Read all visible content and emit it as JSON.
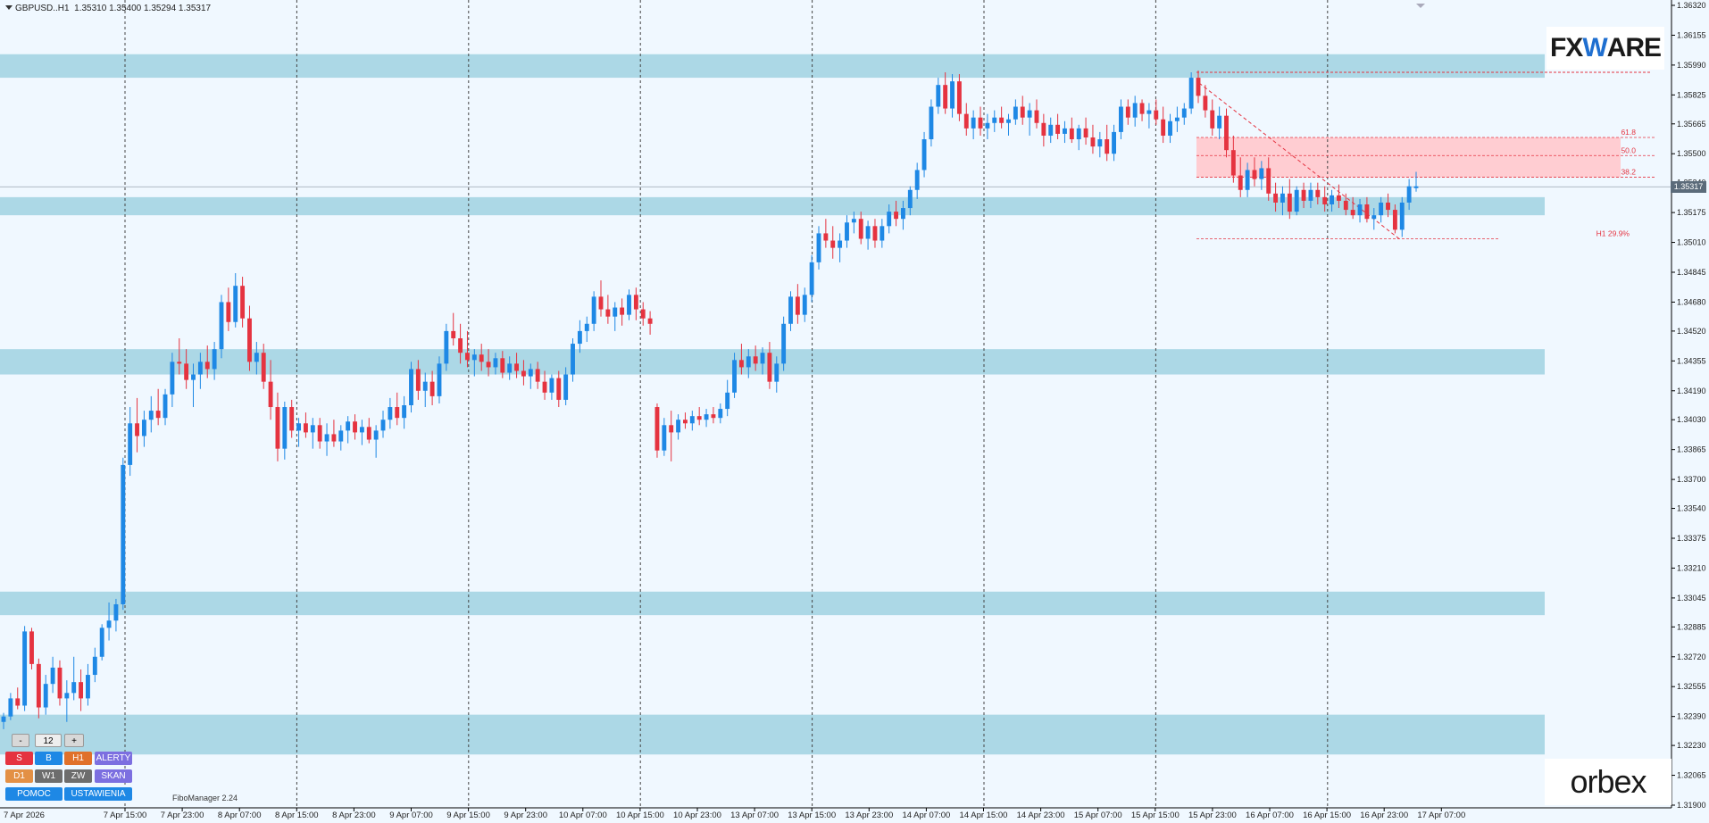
{
  "header": {
    "symbol": "GBPUSD..H1",
    "ohlc": "1.35310 1.35400 1.35294 1.35317"
  },
  "current_price": "1.35317",
  "logos": {
    "fxware_prefix": "FX",
    "fxware_mark": "W",
    "fxware_suffix": "ARE",
    "orbex": "orbex"
  },
  "indicator_label": "FiboManager 2.24",
  "panel": {
    "minus": "-",
    "value": "12",
    "plus": "+",
    "s": "S",
    "b": "B",
    "h1": "H1",
    "alerty": "ALERTY",
    "d1": "D1",
    "w1": "W1",
    "zw": "ZW",
    "skan": "SKAN",
    "pomoc": "POMOC",
    "ustawienia": "USTAWIENIA"
  },
  "colors": {
    "bull": "#1e88e5",
    "bear": "#e53340",
    "zone": "#acd8e6",
    "fibzone": "#ffcdd2",
    "grid": "#444444",
    "fib": "#e53340"
  },
  "chart_data": {
    "type": "candlestick",
    "y_range": [
      1.319,
      1.3632
    ],
    "price_axis": [
      "1.36320",
      "1.36155",
      "1.35990",
      "1.35825",
      "1.35665",
      "1.35500",
      "1.35340",
      "1.35175",
      "1.35010",
      "1.34845",
      "1.34680",
      "1.34520",
      "1.34355",
      "1.34190",
      "1.34030",
      "1.33865",
      "1.33700",
      "1.33540",
      "1.33375",
      "1.33210",
      "1.33045",
      "1.32885",
      "1.32720",
      "1.32555",
      "1.32390",
      "1.32230",
      "1.32065",
      "1.31900"
    ],
    "time_axis": [
      "7 Apr 2026",
      "7 Apr 15:00",
      "7 Apr 23:00",
      "8 Apr 07:00",
      "8 Apr 15:00",
      "8 Apr 23:00",
      "9 Apr 07:00",
      "9 Apr 15:00",
      "9 Apr 23:00",
      "10 Apr 07:00",
      "10 Apr 15:00",
      "10 Apr 23:00",
      "13 Apr 07:00",
      "13 Apr 15:00",
      "13 Apr 23:00",
      "14 Apr 07:00",
      "14 Apr 15:00",
      "14 Apr 23:00",
      "15 Apr 07:00",
      "15 Apr 15:00",
      "15 Apr 23:00",
      "16 Apr 07:00",
      "16 Apr 15:00",
      "16 Apr 23:00",
      "17 Apr 07:00"
    ],
    "zones": [
      [
        1.3592,
        1.3605
      ],
      [
        1.3516,
        1.3526
      ],
      [
        1.3428,
        1.3442
      ],
      [
        1.3295,
        1.3308
      ],
      [
        1.3218,
        1.324
      ]
    ],
    "fib_levels": [
      {
        "label": "61.8",
        "price": 1.3559
      },
      {
        "label": "50.0",
        "price": 1.3549
      },
      {
        "label": "38.2",
        "price": 1.3537
      },
      {
        "label": "H1 29.9%",
        "price": 1.3503
      }
    ],
    "fib_zone": [
      1.3537,
      1.3559
    ],
    "fib_top": 1.3595,
    "candles": [
      [
        1.3236,
        1.3241,
        1.3232,
        1.3239
      ],
      [
        1.3239,
        1.3252,
        1.3237,
        1.3249
      ],
      [
        1.3249,
        1.3255,
        1.3243,
        1.3245
      ],
      [
        1.3245,
        1.3289,
        1.3242,
        1.3286
      ],
      [
        1.3286,
        1.3288,
        1.3265,
        1.3268
      ],
      [
        1.3268,
        1.3271,
        1.3238,
        1.3244
      ],
      [
        1.3244,
        1.3262,
        1.324,
        1.3257
      ],
      [
        1.3257,
        1.3272,
        1.3252,
        1.3266
      ],
      [
        1.3266,
        1.327,
        1.3245,
        1.3249
      ],
      [
        1.3249,
        1.3259,
        1.3236,
        1.3252
      ],
      [
        1.3252,
        1.3272,
        1.3248,
        1.3258
      ],
      [
        1.3258,
        1.3265,
        1.3242,
        1.3249
      ],
      [
        1.3249,
        1.3268,
        1.3245,
        1.3262
      ],
      [
        1.3262,
        1.3277,
        1.3258,
        1.3272
      ],
      [
        1.3272,
        1.329,
        1.327,
        1.3288
      ],
      [
        1.3288,
        1.3302,
        1.3281,
        1.3292
      ],
      [
        1.3292,
        1.3304,
        1.3286,
        1.3301
      ],
      [
        1.3301,
        1.3382,
        1.3298,
        1.3378
      ],
      [
        1.3378,
        1.341,
        1.3372,
        1.3401
      ],
      [
        1.3401,
        1.3415,
        1.3385,
        1.3394
      ],
      [
        1.3394,
        1.3408,
        1.3388,
        1.3403
      ],
      [
        1.3403,
        1.3416,
        1.3396,
        1.3408
      ],
      [
        1.3408,
        1.342,
        1.34,
        1.3404
      ],
      [
        1.3404,
        1.342,
        1.34,
        1.3417
      ],
      [
        1.3417,
        1.344,
        1.341,
        1.3435
      ],
      [
        1.3435,
        1.3448,
        1.3428,
        1.3434
      ],
      [
        1.3434,
        1.3442,
        1.342,
        1.3425
      ],
      [
        1.3425,
        1.3434,
        1.341,
        1.3428
      ],
      [
        1.3428,
        1.344,
        1.342,
        1.3435
      ],
      [
        1.3435,
        1.3444,
        1.3426,
        1.3431
      ],
      [
        1.3431,
        1.3446,
        1.3425,
        1.3442
      ],
      [
        1.3442,
        1.3472,
        1.3437,
        1.3468
      ],
      [
        1.3468,
        1.3476,
        1.3452,
        1.3457
      ],
      [
        1.3457,
        1.3484,
        1.3454,
        1.3477
      ],
      [
        1.3477,
        1.3482,
        1.3454,
        1.3459
      ],
      [
        1.3459,
        1.3466,
        1.343,
        1.3435
      ],
      [
        1.3435,
        1.3446,
        1.3428,
        1.344
      ],
      [
        1.344,
        1.3445,
        1.342,
        1.3424
      ],
      [
        1.3424,
        1.3436,
        1.3403,
        1.341
      ],
      [
        1.341,
        1.3418,
        1.338,
        1.3387
      ],
      [
        1.3387,
        1.3413,
        1.3381,
        1.341
      ],
      [
        1.341,
        1.3414,
        1.3393,
        1.3397
      ],
      [
        1.3397,
        1.3404,
        1.3388,
        1.3401
      ],
      [
        1.3401,
        1.3407,
        1.3393,
        1.3396
      ],
      [
        1.3396,
        1.3404,
        1.3387,
        1.34
      ],
      [
        1.34,
        1.3404,
        1.3387,
        1.3391
      ],
      [
        1.3391,
        1.3401,
        1.3383,
        1.3395
      ],
      [
        1.3395,
        1.3403,
        1.3388,
        1.3391
      ],
      [
        1.3391,
        1.34,
        1.3386,
        1.3397
      ],
      [
        1.3397,
        1.3405,
        1.339,
        1.3402
      ],
      [
        1.3402,
        1.3406,
        1.3392,
        1.3396
      ],
      [
        1.3396,
        1.3403,
        1.3389,
        1.3399
      ],
      [
        1.3399,
        1.3404,
        1.339,
        1.3392
      ],
      [
        1.3392,
        1.34,
        1.3382,
        1.3397
      ],
      [
        1.3397,
        1.3408,
        1.3393,
        1.3403
      ],
      [
        1.3403,
        1.3415,
        1.3398,
        1.341
      ],
      [
        1.341,
        1.3418,
        1.34,
        1.3404
      ],
      [
        1.3404,
        1.3416,
        1.3398,
        1.3411
      ],
      [
        1.3411,
        1.3435,
        1.3407,
        1.3431
      ],
      [
        1.3431,
        1.3436,
        1.3414,
        1.3419
      ],
      [
        1.3419,
        1.3429,
        1.341,
        1.3424
      ],
      [
        1.3424,
        1.343,
        1.3411,
        1.3416
      ],
      [
        1.3416,
        1.3438,
        1.3412,
        1.3434
      ],
      [
        1.3434,
        1.3456,
        1.343,
        1.3452
      ],
      [
        1.3452,
        1.3462,
        1.3444,
        1.3448
      ],
      [
        1.3448,
        1.3456,
        1.3434,
        1.344
      ],
      [
        1.344,
        1.3452,
        1.3432,
        1.3436
      ],
      [
        1.3436,
        1.3442,
        1.3427,
        1.3439
      ],
      [
        1.3439,
        1.3445,
        1.343,
        1.3435
      ],
      [
        1.3435,
        1.3442,
        1.3427,
        1.3432
      ],
      [
        1.3432,
        1.344,
        1.3428,
        1.3437
      ],
      [
        1.3437,
        1.3441,
        1.3426,
        1.3429
      ],
      [
        1.3429,
        1.3438,
        1.3425,
        1.3434
      ],
      [
        1.3434,
        1.344,
        1.3426,
        1.343
      ],
      [
        1.343,
        1.3436,
        1.3422,
        1.3427
      ],
      [
        1.3427,
        1.3434,
        1.342,
        1.3431
      ],
      [
        1.3431,
        1.3435,
        1.342,
        1.3424
      ],
      [
        1.3424,
        1.343,
        1.3414,
        1.3418
      ],
      [
        1.3418,
        1.3428,
        1.3414,
        1.3426
      ],
      [
        1.3426,
        1.343,
        1.341,
        1.3414
      ],
      [
        1.3414,
        1.3432,
        1.3411,
        1.3428
      ],
      [
        1.3428,
        1.3448,
        1.3424,
        1.3445
      ],
      [
        1.3445,
        1.3458,
        1.344,
        1.3452
      ],
      [
        1.3452,
        1.346,
        1.3446,
        1.3456
      ],
      [
        1.3456,
        1.3474,
        1.3452,
        1.3471
      ],
      [
        1.3471,
        1.348,
        1.346,
        1.3464
      ],
      [
        1.3464,
        1.3472,
        1.3456,
        1.346
      ],
      [
        1.346,
        1.3468,
        1.3452,
        1.3465
      ],
      [
        1.3465,
        1.347,
        1.3455,
        1.3461
      ],
      [
        1.3461,
        1.3475,
        1.3458,
        1.3472
      ],
      [
        1.3472,
        1.3476,
        1.3458,
        1.3464
      ],
      [
        1.3464,
        1.3468,
        1.3455,
        1.3459
      ],
      [
        1.3459,
        1.3463,
        1.345,
        1.3456
      ],
      [
        1.341,
        1.3412,
        1.3382,
        1.3386
      ],
      [
        1.3386,
        1.3404,
        1.3383,
        1.34
      ],
      [
        1.34,
        1.3408,
        1.338,
        1.3396
      ],
      [
        1.3396,
        1.3406,
        1.3392,
        1.3403
      ],
      [
        1.3403,
        1.3407,
        1.3398,
        1.3401
      ],
      [
        1.3401,
        1.3408,
        1.3397,
        1.3405
      ],
      [
        1.3405,
        1.341,
        1.34,
        1.3403
      ],
      [
        1.3403,
        1.3409,
        1.3399,
        1.3406
      ],
      [
        1.3406,
        1.341,
        1.3401,
        1.3404
      ],
      [
        1.3404,
        1.3412,
        1.3401,
        1.3409
      ],
      [
        1.3409,
        1.3425,
        1.3405,
        1.3418
      ],
      [
        1.3418,
        1.344,
        1.3415,
        1.3436
      ],
      [
        1.3436,
        1.3445,
        1.3428,
        1.3432
      ],
      [
        1.3432,
        1.3442,
        1.3426,
        1.3438
      ],
      [
        1.3438,
        1.3444,
        1.343,
        1.3434
      ],
      [
        1.3434,
        1.3443,
        1.3428,
        1.344
      ],
      [
        1.344,
        1.3446,
        1.342,
        1.3424
      ],
      [
        1.3424,
        1.3438,
        1.3418,
        1.3434
      ],
      [
        1.3434,
        1.346,
        1.343,
        1.3456
      ],
      [
        1.3456,
        1.3474,
        1.3452,
        1.3471
      ],
      [
        1.3471,
        1.3478,
        1.3456,
        1.3461
      ],
      [
        1.3461,
        1.3476,
        1.3457,
        1.3472
      ],
      [
        1.3472,
        1.3494,
        1.3468,
        1.349
      ],
      [
        1.349,
        1.351,
        1.3486,
        1.3506
      ],
      [
        1.3506,
        1.3514,
        1.3498,
        1.3502
      ],
      [
        1.3502,
        1.351,
        1.3492,
        1.3498
      ],
      [
        1.3498,
        1.3506,
        1.349,
        1.3502
      ],
      [
        1.3502,
        1.3516,
        1.3498,
        1.3512
      ],
      [
        1.3512,
        1.3518,
        1.3506,
        1.3514
      ],
      [
        1.3514,
        1.3518,
        1.35,
        1.3503
      ],
      [
        1.3503,
        1.3513,
        1.3497,
        1.351
      ],
      [
        1.351,
        1.3514,
        1.3498,
        1.3502
      ],
      [
        1.3502,
        1.3514,
        1.3498,
        1.351
      ],
      [
        1.351,
        1.3522,
        1.3506,
        1.3518
      ],
      [
        1.3518,
        1.3524,
        1.351,
        1.3514
      ],
      [
        1.3514,
        1.3524,
        1.3508,
        1.352
      ],
      [
        1.352,
        1.3532,
        1.3516,
        1.353
      ],
      [
        1.353,
        1.3545,
        1.3525,
        1.3541
      ],
      [
        1.3541,
        1.3562,
        1.3537,
        1.3558
      ],
      [
        1.3558,
        1.358,
        1.3554,
        1.3576
      ],
      [
        1.3576,
        1.3592,
        1.3572,
        1.3588
      ],
      [
        1.3588,
        1.3595,
        1.3572,
        1.3575
      ],
      [
        1.3575,
        1.3594,
        1.357,
        1.359
      ],
      [
        1.359,
        1.3594,
        1.3568,
        1.3572
      ],
      [
        1.3572,
        1.3578,
        1.356,
        1.3564
      ],
      [
        1.3564,
        1.3574,
        1.3558,
        1.357
      ],
      [
        1.357,
        1.3576,
        1.356,
        1.3564
      ],
      [
        1.3564,
        1.3572,
        1.3558,
        1.3567
      ],
      [
        1.3567,
        1.3574,
        1.3562,
        1.357
      ],
      [
        1.357,
        1.3576,
        1.3564,
        1.3567
      ],
      [
        1.3567,
        1.3572,
        1.356,
        1.3569
      ],
      [
        1.3569,
        1.358,
        1.3566,
        1.3576
      ],
      [
        1.3576,
        1.3582,
        1.3566,
        1.357
      ],
      [
        1.357,
        1.3578,
        1.356,
        1.3574
      ],
      [
        1.3574,
        1.358,
        1.3564,
        1.3567
      ],
      [
        1.3567,
        1.3572,
        1.3554,
        1.356
      ],
      [
        1.356,
        1.357,
        1.3556,
        1.3566
      ],
      [
        1.3566,
        1.3572,
        1.3558,
        1.3561
      ],
      [
        1.3561,
        1.3568,
        1.3556,
        1.3564
      ],
      [
        1.3564,
        1.357,
        1.3556,
        1.3558
      ],
      [
        1.3558,
        1.3566,
        1.3552,
        1.3564
      ],
      [
        1.3564,
        1.357,
        1.3555,
        1.3559
      ],
      [
        1.3559,
        1.3566,
        1.355,
        1.3554
      ],
      [
        1.3554,
        1.3562,
        1.3548,
        1.3558
      ],
      [
        1.3558,
        1.3566,
        1.3546,
        1.355
      ],
      [
        1.355,
        1.3566,
        1.3546,
        1.3562
      ],
      [
        1.3562,
        1.358,
        1.3558,
        1.3576
      ],
      [
        1.3576,
        1.358,
        1.3566,
        1.357
      ],
      [
        1.357,
        1.3582,
        1.3565,
        1.3578
      ],
      [
        1.3578,
        1.358,
        1.3568,
        1.3572
      ],
      [
        1.3572,
        1.3578,
        1.3564,
        1.3574
      ],
      [
        1.3574,
        1.358,
        1.3566,
        1.3569
      ],
      [
        1.3569,
        1.3576,
        1.3556,
        1.356
      ],
      [
        1.356,
        1.3572,
        1.3556,
        1.3568
      ],
      [
        1.3568,
        1.3576,
        1.3562,
        1.357
      ],
      [
        1.357,
        1.3578,
        1.3566,
        1.3575
      ],
      [
        1.3575,
        1.3595,
        1.3572,
        1.3592
      ],
      [
        1.3592,
        1.3596,
        1.3578,
        1.3582
      ],
      [
        1.3582,
        1.3588,
        1.357,
        1.3574
      ],
      [
        1.3574,
        1.358,
        1.356,
        1.3564
      ],
      [
        1.3564,
        1.3576,
        1.3558,
        1.3571
      ],
      [
        1.3571,
        1.3575,
        1.3548,
        1.3552
      ],
      [
        1.3552,
        1.356,
        1.3534,
        1.3538
      ],
      [
        1.3538,
        1.3548,
        1.3526,
        1.353
      ],
      [
        1.353,
        1.3545,
        1.3526,
        1.3541
      ],
      [
        1.3541,
        1.3548,
        1.3532,
        1.3536
      ],
      [
        1.3536,
        1.3546,
        1.353,
        1.3542
      ],
      [
        1.3542,
        1.3548,
        1.3524,
        1.3528
      ],
      [
        1.3528,
        1.3534,
        1.3518,
        1.3523
      ],
      [
        1.3523,
        1.3532,
        1.3516,
        1.3528
      ],
      [
        1.3528,
        1.3536,
        1.3514,
        1.3518
      ],
      [
        1.3518,
        1.3532,
        1.3516,
        1.353
      ],
      [
        1.353,
        1.3534,
        1.352,
        1.3524
      ],
      [
        1.3524,
        1.3534,
        1.352,
        1.353
      ],
      [
        1.353,
        1.3534,
        1.3522,
        1.3526
      ],
      [
        1.3526,
        1.3532,
        1.3518,
        1.3522
      ],
      [
        1.3522,
        1.353,
        1.3518,
        1.3527
      ],
      [
        1.3527,
        1.3533,
        1.352,
        1.3524
      ],
      [
        1.3524,
        1.3528,
        1.3516,
        1.3519
      ],
      [
        1.3519,
        1.3526,
        1.3514,
        1.3516
      ],
      [
        1.3516,
        1.3525,
        1.3512,
        1.3522
      ],
      [
        1.3522,
        1.3526,
        1.3512,
        1.3514
      ],
      [
        1.3514,
        1.352,
        1.3508,
        1.3516
      ],
      [
        1.3516,
        1.3526,
        1.3512,
        1.3523
      ],
      [
        1.3523,
        1.3528,
        1.3515,
        1.3519
      ],
      [
        1.3519,
        1.3522,
        1.3506,
        1.3508
      ],
      [
        1.3508,
        1.3526,
        1.3504,
        1.3523
      ],
      [
        1.3523,
        1.3536,
        1.3519,
        1.3532
      ],
      [
        1.3531,
        1.354,
        1.3529,
        1.3532
      ]
    ]
  }
}
